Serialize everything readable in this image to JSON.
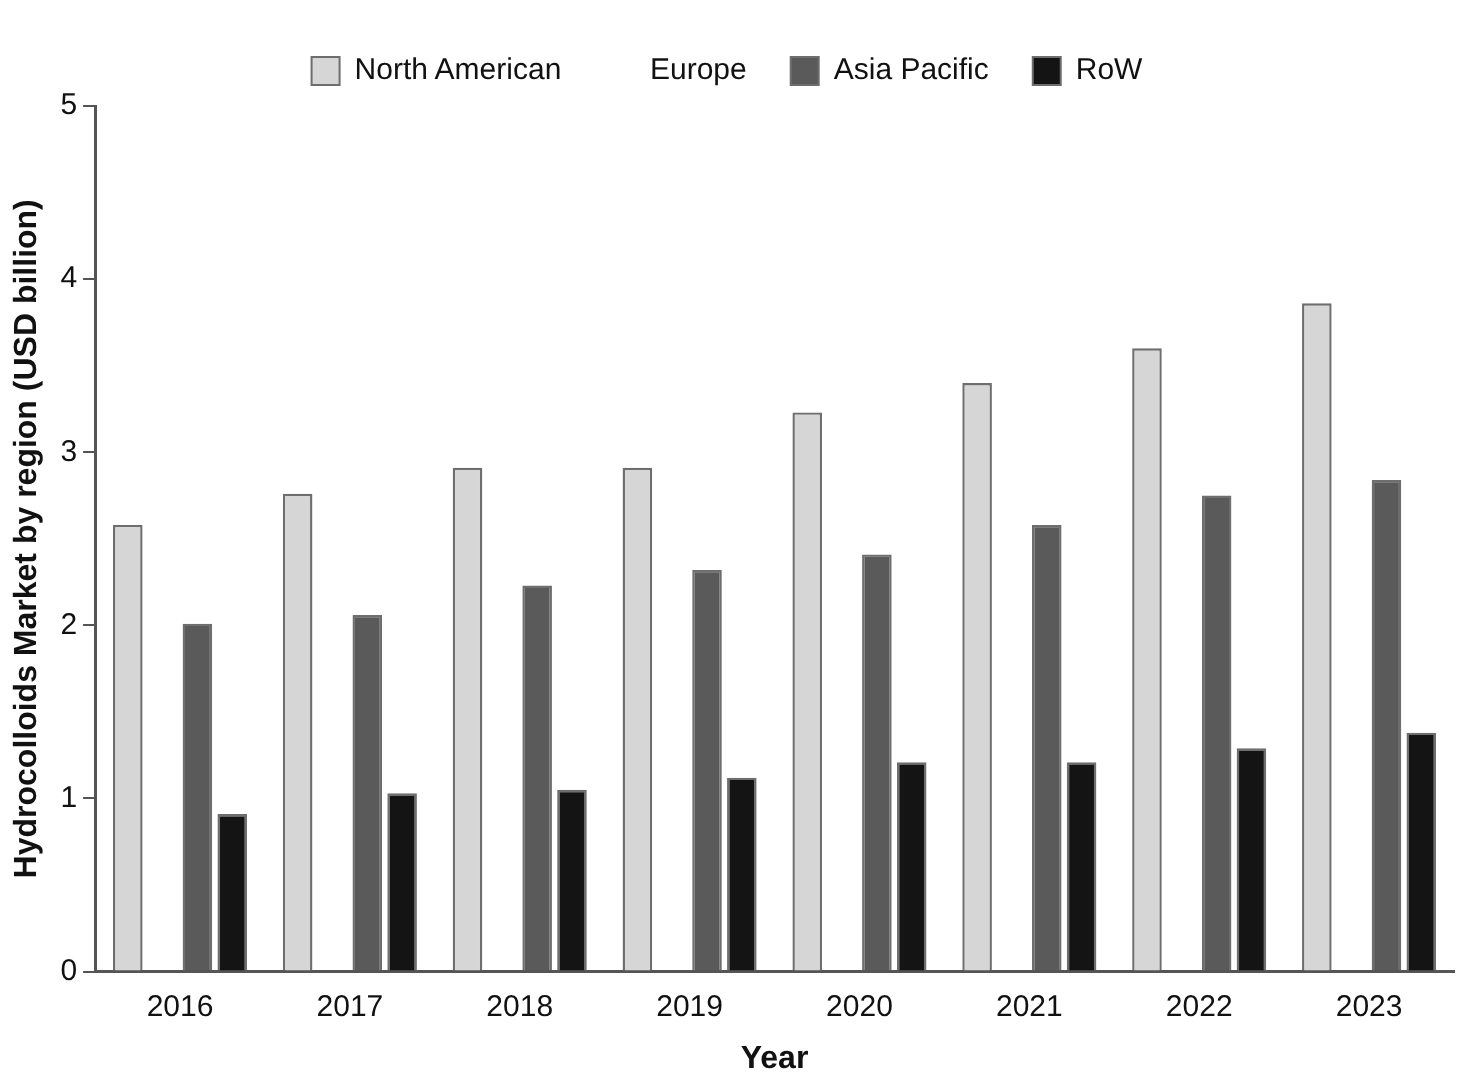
{
  "chart_data": {
    "type": "bar",
    "xlabel": "Year",
    "ylabel": "Hydrocolloids Market by region (USD billion)",
    "categories": [
      "2016",
      "2017",
      "2018",
      "2019",
      "2020",
      "2021",
      "2022",
      "2023"
    ],
    "series": [
      {
        "name": "North American",
        "color": "#d6d6d6",
        "values": [
          2.58,
          2.76,
          2.91,
          2.91,
          3.23,
          3.4,
          3.6,
          3.86
        ]
      },
      {
        "name": "Europe",
        "values": [
          null,
          null,
          null,
          null,
          null,
          null,
          null,
          null
        ]
      },
      {
        "name": "Asia Pacific",
        "color": "#5a5a5a",
        "values": [
          2.01,
          2.06,
          2.23,
          2.32,
          2.41,
          2.58,
          2.75,
          2.84
        ]
      },
      {
        "name": "RoW",
        "color": "#141414",
        "values": [
          0.91,
          1.03,
          1.05,
          1.12,
          1.21,
          1.21,
          1.29,
          1.38
        ]
      }
    ],
    "ylim": [
      0,
      5
    ],
    "yticks": [
      0,
      1,
      2,
      3,
      4,
      5
    ],
    "grid": false,
    "legend": "top"
  }
}
